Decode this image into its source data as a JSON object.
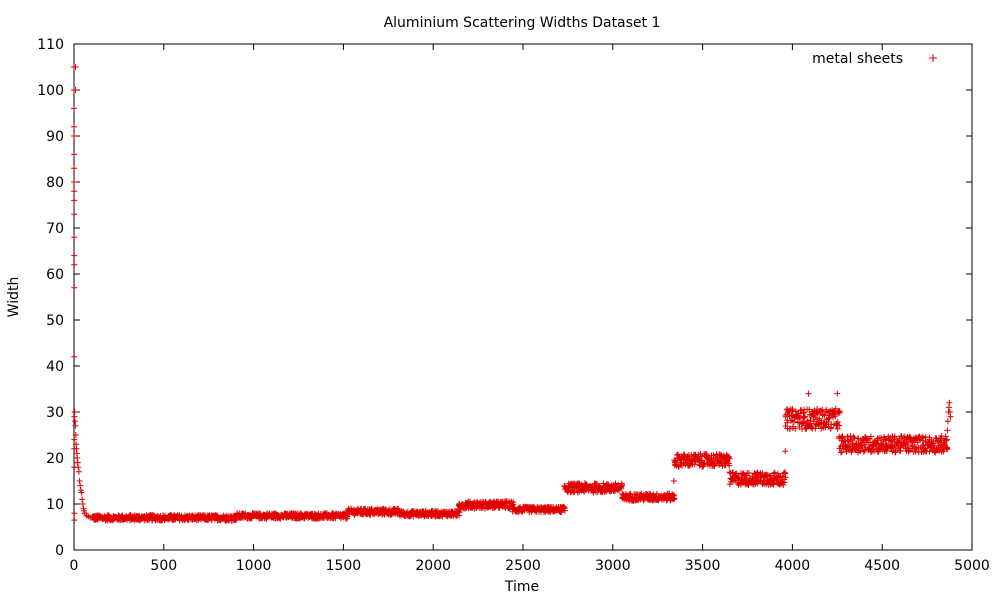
{
  "chart_data": {
    "type": "scatter",
    "title": "Aluminium Scattering Widths Dataset 1",
    "xlabel": "Time",
    "ylabel": "Width",
    "xlim": [
      0,
      5000
    ],
    "ylim": [
      0,
      110
    ],
    "xticks": [
      0,
      500,
      1000,
      1500,
      2000,
      2500,
      3000,
      3500,
      4000,
      4500,
      5000
    ],
    "yticks": [
      0,
      10,
      20,
      30,
      40,
      50,
      60,
      70,
      80,
      90,
      100,
      110
    ],
    "grid": false,
    "legend_position": "top-right",
    "marker": "plus",
    "color": "#e00000",
    "series": [
      {
        "name": "metal sheets",
        "segments": [
          {
            "x_start": 0,
            "x_end": 2,
            "values": [
              105,
              100,
              96,
              92,
              90,
              86,
              83,
              80,
              78,
              76,
              73,
              68,
              64,
              62,
              57,
              42,
              24,
              22,
              18,
              8,
              6.5
            ]
          },
          {
            "x_start": 2,
            "x_end": 20,
            "values": [
              29,
              30,
              28,
              27,
              25,
              23,
              22,
              21,
              20,
              19
            ]
          },
          {
            "x_start": 20,
            "x_end": 60,
            "values": [
              19,
              18,
              17,
              15,
              14,
              13,
              12.5,
              11,
              10,
              9,
              8.5,
              8
            ]
          },
          {
            "x_start": 60,
            "x_end": 100,
            "values": [
              8,
              7.5,
              7.3,
              7.1,
              7
            ]
          },
          {
            "x_start": 100,
            "x_end": 900,
            "level": 7,
            "spread": 0.6
          },
          {
            "x_start": 900,
            "x_end": 1520,
            "level": 7.4,
            "spread": 0.6
          },
          {
            "x_start": 1520,
            "x_end": 1810,
            "level": 8.3,
            "spread": 0.7
          },
          {
            "x_start": 1810,
            "x_end": 2140,
            "level": 7.9,
            "spread": 0.6
          },
          {
            "x_start": 2140,
            "x_end": 2440,
            "level": 9.8,
            "spread": 0.8
          },
          {
            "x_start": 2440,
            "x_end": 2730,
            "level": 8.8,
            "spread": 0.6
          },
          {
            "x_start": 2730,
            "x_end": 3050,
            "level": 13.5,
            "spread": 1.0
          },
          {
            "x_start": 3050,
            "x_end": 3340,
            "level": 11.5,
            "spread": 0.8
          },
          {
            "x_start": 3340,
            "x_end": 3650,
            "level": 19.5,
            "spread": 1.4
          },
          {
            "x_start": 3650,
            "x_end": 3960,
            "level": 15.5,
            "spread": 1.4
          },
          {
            "x_start": 3960,
            "x_end": 4260,
            "level": 28.5,
            "spread": 2.2
          },
          {
            "x_start": 4260,
            "x_end": 4860,
            "level": 23,
            "spread": 1.8
          },
          {
            "x_start": 4860,
            "x_end": 4880,
            "values": [
              24,
              26,
              28,
              30,
              31,
              32,
              30,
              29
            ]
          }
        ],
        "outliers": [
          [
            8,
            105
          ],
          [
            8,
            100
          ],
          [
            3340,
            15
          ],
          [
            3960,
            21.5
          ],
          [
            4090,
            34
          ],
          [
            4250,
            34
          ]
        ]
      }
    ]
  }
}
